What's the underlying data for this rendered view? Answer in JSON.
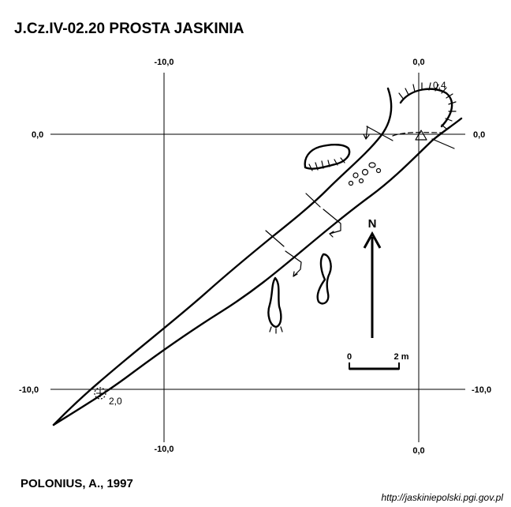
{
  "title": "J.Cz.IV-02.20  PROSTA JASKINIA",
  "grid": {
    "top_left": "-10,0",
    "top_right": "0,0",
    "bottom_left": "-10,0",
    "bottom_right": "0,0",
    "left_top": "0,0",
    "right_top": "0,0",
    "left_bottom": "-10,0",
    "right_bottom": "-10,0"
  },
  "depth_marks": {
    "entrance": "0,4",
    "end": "2,0"
  },
  "north_label": "N",
  "scale": {
    "start": "0",
    "end": "2 m"
  },
  "author": "POLONIUS, A., 1997",
  "source_url": "http://jaskiniepolski.pgi.gov.pl"
}
